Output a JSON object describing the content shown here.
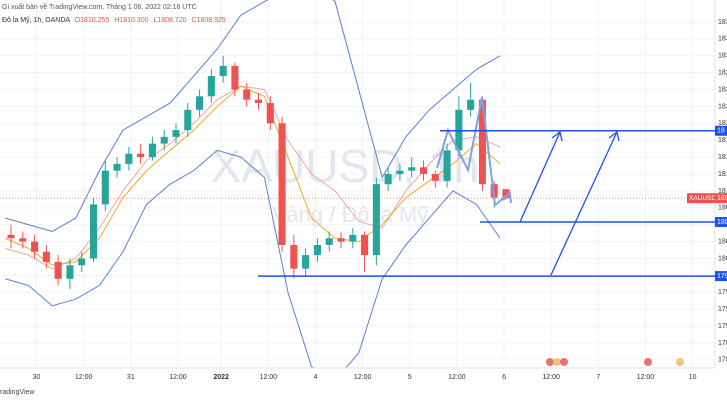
{
  "header": {
    "published": "Gi xuất bản về TradingView.com, Tháng 1 06, 2022 02:16 UTC",
    "instrument": "Đô la Mỹ, 1h, OANDA",
    "ohlc": [
      "O1810.255",
      "H1810.300",
      "L1808.720",
      "C1808.925"
    ]
  },
  "watermark": {
    "symbol": "XAUUSD, 1h",
    "name": "Vàng / Đô la Mỹ"
  },
  "footer": "radingView",
  "chart_data": {
    "type": "candlestick",
    "up_color": "#26a69a",
    "down_color": "#ef5350",
    "x": [
      1.5,
      4.5,
      7.5,
      10.5,
      13.5,
      16.5,
      19.5,
      22.5,
      25.5,
      28.5,
      31.5,
      34.5,
      37.5,
      40.5,
      43.5,
      46.5,
      49.5,
      52.5,
      55.5,
      58.5,
      61.5,
      64.5,
      67.5,
      70.5,
      73.5,
      76.5,
      79.5,
      82.5,
      85.5,
      88.5,
      91.5,
      94.5,
      97.5,
      100.5,
      103.5,
      106.5,
      109.5,
      112.5,
      115.5,
      118.5,
      121.5,
      124.5,
      127.5
    ],
    "open": [
      1803.5,
      1803,
      1802.5,
      1801,
      1799.5,
      1797,
      1799,
      1800,
      1808,
      1813,
      1814,
      1815.5,
      1815,
      1817,
      1818,
      1819,
      1822,
      1824,
      1827,
      1828.5,
      1825,
      1823.5,
      1823,
      1820,
      1802,
      1798.5,
      1800.5,
      1802,
      1803,
      1802.5,
      1803.5,
      1800.5,
      1811,
      1812.5,
      1813,
      1813.5,
      1812.5,
      1811.5,
      1816,
      1822,
      1823.5,
      1811,
      1810.255
    ],
    "high": [
      1805,
      1804,
      1803.5,
      1802,
      1800.5,
      1800,
      1801,
      1809,
      1814.5,
      1815,
      1816.5,
      1817,
      1818,
      1819,
      1820,
      1823,
      1825,
      1828,
      1830,
      1829,
      1826,
      1824.5,
      1824,
      1821,
      1803.5,
      1801.5,
      1803,
      1804,
      1804,
      1804.5,
      1804,
      1812,
      1813.5,
      1814,
      1815,
      1814.5,
      1813,
      1817,
      1824,
      1826,
      1824,
      1811.5,
      1810.3
    ],
    "low": [
      1801.5,
      1801.5,
      1800,
      1798.5,
      1796,
      1795.5,
      1798,
      1799.5,
      1807,
      1812,
      1813,
      1814,
      1814.5,
      1816,
      1817,
      1818,
      1821,
      1823,
      1826,
      1824,
      1822.5,
      1822,
      1819,
      1801,
      1797,
      1797.5,
      1799.5,
      1801,
      1801.5,
      1801.5,
      1798,
      1799,
      1810,
      1811.5,
      1812,
      1811.5,
      1810.5,
      1810.5,
      1815,
      1821,
      1810,
      1807.5,
      1808.72
    ],
    "close": [
      1803,
      1802.5,
      1801,
      1799.5,
      1797,
      1799,
      1800,
      1808,
      1813,
      1814,
      1815.5,
      1815,
      1817,
      1818,
      1819,
      1822,
      1824,
      1827,
      1828.5,
      1825,
      1823.5,
      1823,
      1820,
      1802,
      1798.5,
      1800.5,
      1802,
      1803,
      1802.5,
      1803.5,
      1800.5,
      1811,
      1812.5,
      1813,
      1813.5,
      1812.5,
      1811.5,
      1816,
      1822,
      1823.5,
      1811,
      1809,
      1808.925
    ],
    "overlay_x": [
      0,
      6,
      12,
      18,
      24,
      30,
      36,
      42,
      48,
      54,
      60,
      66,
      72,
      78,
      84,
      90,
      96,
      102,
      108,
      114,
      120,
      126
    ],
    "overlays": [
      {
        "color": "#5b7fd8",
        "values": [
          1806,
          1805,
          1804,
          1806,
          1813,
          1819,
          1821,
          1823,
          1827,
          1831,
          1836,
          1838,
          1840,
          1841,
          1838,
          1825,
          1812,
          1818,
          1822,
          1825,
          1828,
          1830
        ]
      },
      {
        "color": "#5b7fd8",
        "values": [
          1797,
          1796,
          1793,
          1794,
          1796,
          1801,
          1808,
          1811,
          1813,
          1816,
          1815,
          1812,
          1795,
          1784,
          1782,
          1786,
          1797,
          1802,
          1806,
          1810,
          1808,
          1803
        ]
      },
      {
        "color": "#f7a4a4",
        "values": [
          1801.5,
          1800.5,
          1798.5,
          1800,
          1804.5,
          1810,
          1814.5,
          1817,
          1820,
          1823.5,
          1825.5,
          1825,
          1817.5,
          1812.5,
          1810,
          1805.5,
          1804.5,
          1810,
          1814,
          1817.5,
          1818,
          1816.5
        ]
      },
      {
        "color": "#f5a623",
        "values": [
          1803,
          1801.5,
          1799,
          1799.5,
          1803,
          1809,
          1813,
          1816,
          1819,
          1822.5,
          1825.5,
          1824,
          1815,
          1806,
          1803,
          1802.5,
          1805,
          1809,
          1811.5,
          1814,
          1817,
          1814
        ]
      }
    ],
    "levels": [
      {
        "value": 1818.9,
        "label": "18"
      },
      {
        "value": 1805.4,
        "label": "180"
      },
      {
        "value": 1797.4,
        "label": "179"
      }
    ],
    "level_color": "#1e53e5",
    "symbol_tag": "XAUUSD",
    "last_price_label": "180",
    "xlim": [
      -1.3,
      180.7
    ],
    "ylim": [
      1783.8,
      1838.25
    ],
    "xticks": [
      {
        "value": 8,
        "label": "30"
      },
      {
        "value": 20,
        "label": "12:00"
      },
      {
        "value": 32,
        "label": "31"
      },
      {
        "value": 44,
        "label": "12:00"
      },
      {
        "value": 55,
        "label": "2022"
      },
      {
        "value": 67,
        "label": "12:00"
      },
      {
        "value": 79,
        "label": "4"
      },
      {
        "value": 91,
        "label": "12:00"
      },
      {
        "value": 103,
        "label": "5"
      },
      {
        "value": 115,
        "label": "12:00"
      },
      {
        "value": 127,
        "label": "6"
      },
      {
        "value": 139,
        "label": "12:00"
      },
      {
        "value": 151,
        "label": "7"
      },
      {
        "value": 163,
        "label": "12:00"
      },
      {
        "value": 175,
        "label": "10"
      }
    ],
    "yticks": [
      {
        "value": 1785,
        "label": "178"
      },
      {
        "value": 1787.5,
        "label": "178"
      },
      {
        "value": 1790,
        "label": "179"
      },
      {
        "value": 1792.5,
        "label": "179"
      },
      {
        "value": 1795,
        "label": "179"
      },
      {
        "value": 1797.5,
        "label": "179"
      },
      {
        "value": 1800,
        "label": "180"
      },
      {
        "value": 1802.5,
        "label": "180"
      },
      {
        "value": 1805,
        "label": "180"
      },
      {
        "value": 1807.5,
        "label": "180"
      },
      {
        "value": 1810,
        "label": "181"
      },
      {
        "value": 1812.5,
        "label": "181"
      },
      {
        "value": 1815,
        "label": "181"
      },
      {
        "value": 1817.5,
        "label": "181"
      },
      {
        "value": 1820,
        "label": "182"
      },
      {
        "value": 1822.5,
        "label": "182"
      },
      {
        "value": 1825,
        "label": "182"
      },
      {
        "value": 1827.5,
        "label": "182"
      },
      {
        "value": 1830,
        "label": "183"
      },
      {
        "value": 1832.5,
        "label": "183"
      },
      {
        "value": 1835,
        "label": "183"
      }
    ],
    "grid": true
  }
}
